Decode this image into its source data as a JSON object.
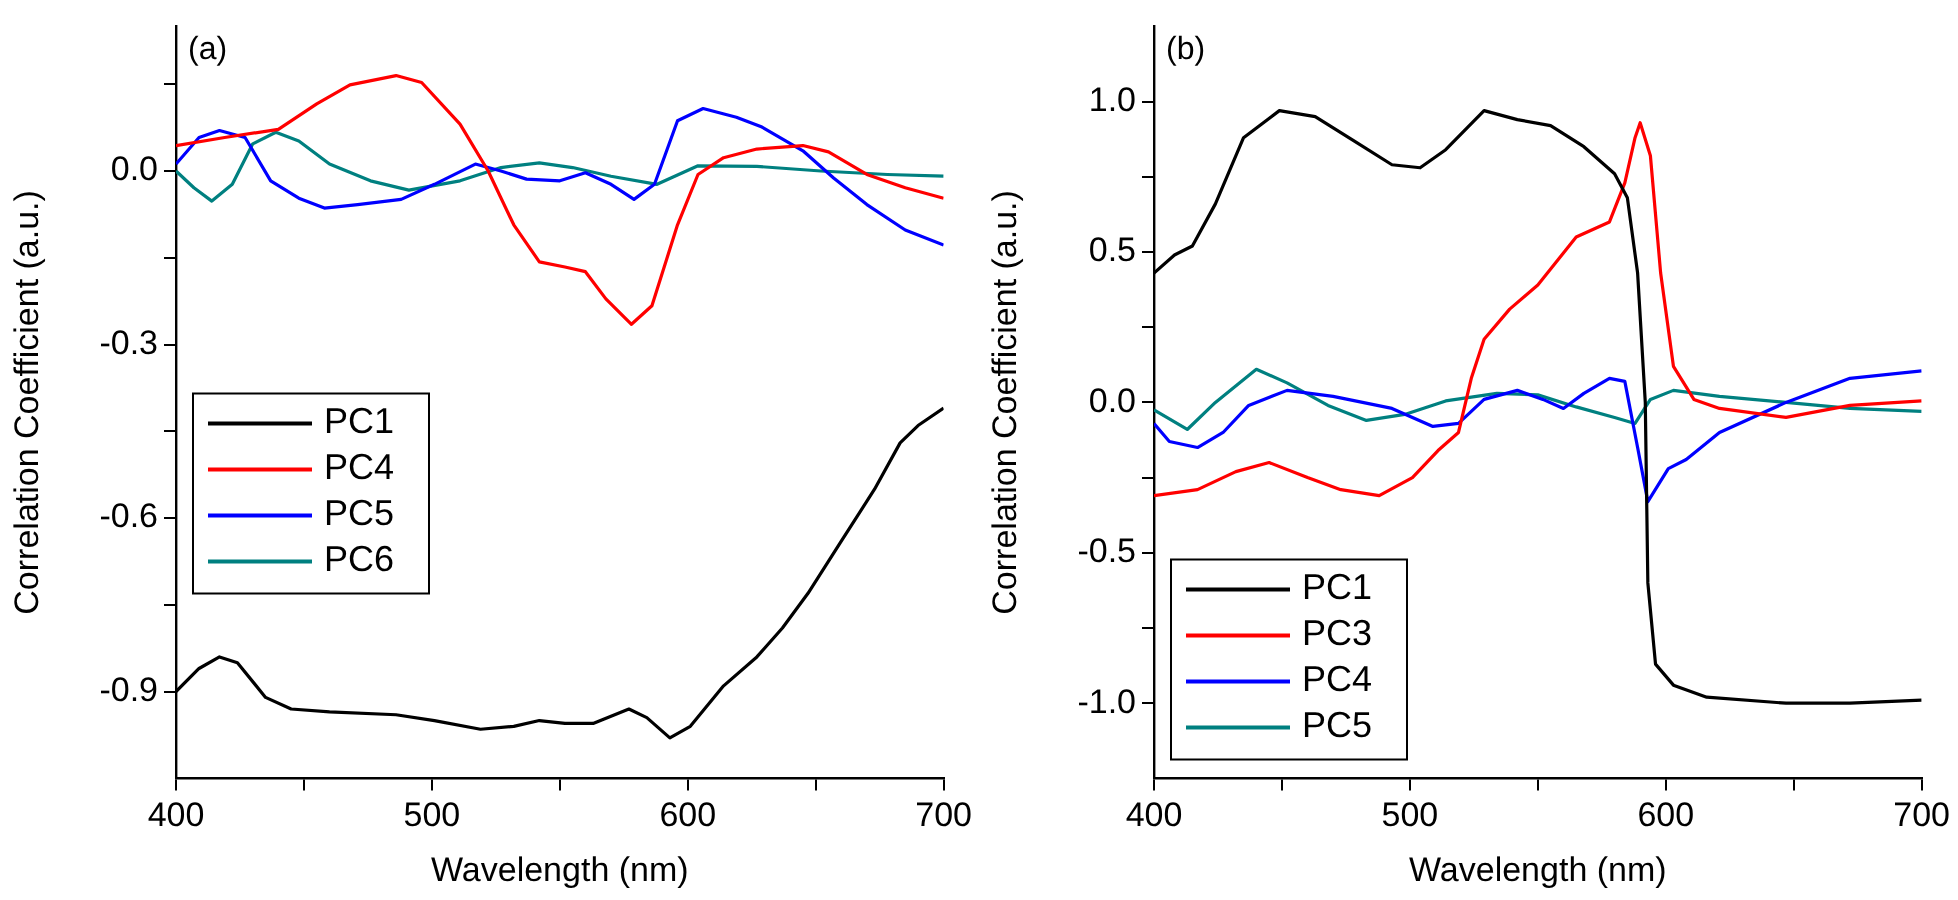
{
  "chart_data": [
    {
      "type": "line",
      "xlabel": "Wavelength (nm)",
      "ylabel": "Correlation Coefficient (a.u.)",
      "annotations": [
        "(a)"
      ],
      "legend": "left",
      "grid": false,
      "marker": "none",
      "xlim": [
        400,
        700
      ],
      "xticks": [
        400,
        {
          "value": 450,
          "label": null
        },
        500,
        {
          "value": 550,
          "label": null
        },
        600,
        {
          "value": 650,
          "label": null
        },
        700
      ],
      "ylim": [
        -1.05,
        0.25
      ],
      "yticks": [
        {
          "value": -0.9,
          "label": "-0.9"
        },
        {
          "value": -0.75,
          "label": null
        },
        {
          "value": -0.6,
          "label": "-0.6"
        },
        {
          "value": -0.45,
          "label": null
        },
        {
          "value": -0.3,
          "label": "-0.3"
        },
        {
          "value": -0.15,
          "label": null
        },
        {
          "value": 0,
          "label": "0.0"
        },
        {
          "value": 0.15,
          "label": null
        }
      ],
      "series": [
        {
          "name": "PC1",
          "color": "#000000",
          "x": [
            400,
            409,
            417,
            424,
            435,
            445,
            460,
            486,
            501,
            519,
            532,
            542,
            552,
            563,
            577,
            584,
            593,
            601,
            614,
            627,
            637,
            647,
            660,
            673,
            683,
            690,
            700
          ],
          "values": [
            -0.9,
            -0.86,
            -0.84,
            -0.85,
            -0.91,
            -0.93,
            -0.935,
            -0.94,
            -0.95,
            -0.965,
            -0.96,
            -0.95,
            -0.955,
            -0.955,
            -0.93,
            -0.945,
            -0.98,
            -0.96,
            -0.89,
            -0.84,
            -0.79,
            -0.73,
            -0.64,
            -0.55,
            -0.47,
            -0.44,
            -0.41
          ]
        },
        {
          "name": "PC4",
          "color": "#ff0000",
          "x": [
            400,
            419,
            440,
            455,
            468,
            486,
            496,
            511,
            522,
            532,
            542,
            552,
            560,
            568,
            578,
            586,
            596,
            604,
            614,
            627,
            645,
            655,
            670,
            685,
            700
          ],
          "values": [
            0.044,
            0.058,
            0.072,
            0.116,
            0.149,
            0.165,
            0.153,
            0.081,
            0,
            -0.093,
            -0.157,
            -0.166,
            -0.174,
            -0.221,
            -0.265,
            -0.233,
            -0.093,
            -0.006,
            0.023,
            0.038,
            0.044,
            0.033,
            -0.006,
            -0.029,
            -0.047
          ]
        },
        {
          "name": "PC5",
          "color": "#0000ff",
          "x": [
            400,
            409,
            417,
            427,
            437,
            448,
            458,
            471,
            488,
            501,
            517,
            527,
            537,
            550,
            560,
            570,
            579,
            587,
            596,
            606,
            619,
            629,
            645,
            657,
            670,
            685,
            700
          ],
          "values": [
            0.012,
            0.058,
            0.07,
            0.058,
            -0.017,
            -0.047,
            -0.064,
            -0.058,
            -0.049,
            -0.023,
            0.012,
            0,
            -0.014,
            -0.017,
            -0.003,
            -0.023,
            -0.049,
            -0.023,
            0.087,
            0.108,
            0.093,
            0.076,
            0.035,
            -0.012,
            -0.058,
            -0.102,
            -0.128
          ]
        },
        {
          "name": "PC6",
          "color": "#008080",
          "x": [
            400,
            407,
            414,
            422,
            430,
            439,
            448,
            460,
            476,
            491,
            511,
            527,
            542,
            555,
            570,
            588,
            604,
            627,
            652,
            678,
            700
          ],
          "values": [
            0,
            -0.029,
            -0.052,
            -0.023,
            0.047,
            0.067,
            0.052,
            0.012,
            -0.017,
            -0.033,
            -0.017,
            0.006,
            0.014,
            0.006,
            -0.009,
            -0.023,
            0.009,
            0.008,
            0,
            -0.006,
            -0.009
          ]
        }
      ]
    },
    {
      "type": "line",
      "xlabel": "Wavelength (nm)",
      "ylabel": "Correlation Coefficient (a.u.)",
      "annotations": [
        "(b)"
      ],
      "legend": "bottom left",
      "grid": false,
      "marker": "none",
      "xlim": [
        400,
        700
      ],
      "xticks": [
        400,
        {
          "value": 450,
          "label": null
        },
        500,
        {
          "value": 550,
          "label": null
        },
        600,
        {
          "value": 650,
          "label": null
        },
        700
      ],
      "ylim": [
        -1.25,
        1.25
      ],
      "yticks": [
        {
          "value": -1,
          "label": "-1.0"
        },
        {
          "value": -0.75,
          "label": null
        },
        {
          "value": -0.5,
          "label": "-0.5"
        },
        {
          "value": -0.25,
          "label": null
        },
        {
          "value": 0,
          "label": "0.0"
        },
        {
          "value": 0.25,
          "label": null
        },
        {
          "value": 0.5,
          "label": "0.5"
        },
        {
          "value": 0.75,
          "label": null
        },
        {
          "value": 1,
          "label": "1.0"
        }
      ],
      "series": [
        {
          "name": "PC1",
          "color": "#000000",
          "x": [
            400,
            408,
            415,
            424,
            435,
            449,
            463,
            478,
            493,
            504,
            514,
            529,
            542,
            555,
            568,
            580,
            585,
            589,
            592,
            593,
            596,
            603,
            616,
            647,
            672,
            700
          ],
          "values": [
            0.43,
            0.49,
            0.52,
            0.66,
            0.88,
            0.97,
            0.95,
            0.87,
            0.79,
            0.78,
            0.84,
            0.97,
            0.94,
            0.92,
            0.85,
            0.76,
            0.68,
            0.43,
            0,
            -0.6,
            -0.87,
            -0.94,
            -0.98,
            -1,
            -1,
            -0.99
          ]
        },
        {
          "name": "PC3",
          "color": "#ff0000",
          "x": [
            400,
            417,
            432,
            445,
            460,
            473,
            488,
            501,
            511,
            519,
            524,
            529,
            539,
            550,
            565,
            578,
            584,
            588,
            590,
            594,
            598,
            603,
            611,
            621,
            647,
            672,
            700
          ],
          "values": [
            -0.31,
            -0.29,
            -0.23,
            -0.2,
            -0.25,
            -0.29,
            -0.31,
            -0.25,
            -0.16,
            -0.1,
            0.08,
            0.21,
            0.31,
            0.39,
            0.55,
            0.6,
            0.73,
            0.88,
            0.93,
            0.82,
            0.43,
            0.12,
            0.01,
            -0.02,
            -0.05,
            -0.01,
            0.005
          ]
        },
        {
          "name": "PC4",
          "color": "#0000ff",
          "x": [
            400,
            406,
            417,
            427,
            437,
            452,
            470,
            493,
            509,
            519,
            529,
            542,
            552,
            560,
            568,
            578,
            584,
            589,
            593,
            601,
            608,
            621,
            647,
            672,
            700
          ],
          "values": [
            -0.07,
            -0.13,
            -0.15,
            -0.1,
            -0.01,
            0.04,
            0.02,
            -0.02,
            -0.08,
            -0.07,
            0.01,
            0.04,
            0.01,
            -0.02,
            0.03,
            0.08,
            0.07,
            -0.15,
            -0.33,
            -0.22,
            -0.19,
            -0.1,
            0,
            0.08,
            0.105
          ]
        },
        {
          "name": "PC5",
          "color": "#008080",
          "x": [
            400,
            413,
            424,
            440,
            452,
            468,
            483,
            498,
            514,
            534,
            550,
            565,
            580,
            588,
            594,
            603,
            621,
            647,
            672,
            700
          ],
          "values": [
            -0.025,
            -0.09,
            0,
            0.11,
            0.065,
            -0.01,
            -0.06,
            -0.04,
            0.005,
            0.03,
            0.025,
            -0.015,
            -0.05,
            -0.07,
            0.01,
            0.04,
            0.02,
            0,
            -0.02,
            -0.03
          ]
        }
      ]
    }
  ]
}
